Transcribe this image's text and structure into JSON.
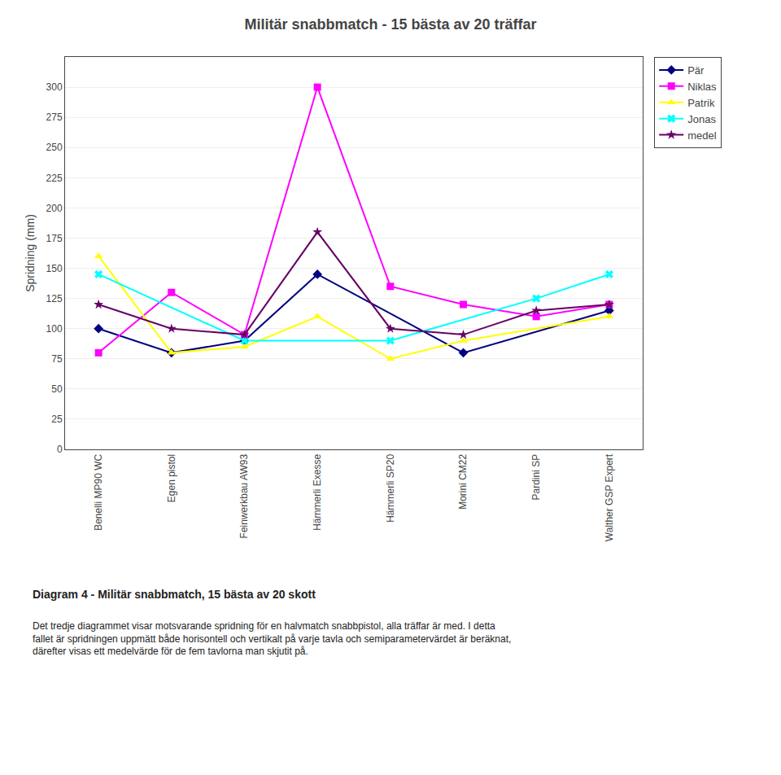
{
  "chart_data": {
    "type": "line",
    "title": "Militär snabbmatch - 15 bästa av 20 träffar",
    "ylabel": "Spridning (mm)",
    "categories": [
      "Benelli MP90 WC",
      "Egen pistol",
      "Feinwerkbau AW93",
      "Hämmerli Exesse",
      "Hämmerli SP20",
      "Morini CM22",
      "Pardini SP",
      "Walther GSP Expert"
    ],
    "series": [
      {
        "name": "Pär",
        "color": "#000080",
        "marker": "diamond",
        "values": [
          100,
          80,
          90,
          145,
          null,
          80,
          null,
          115
        ]
      },
      {
        "name": "Niklas",
        "color": "#FF00FF",
        "marker": "square",
        "values": [
          80,
          130,
          95,
          300,
          135,
          120,
          110,
          120
        ]
      },
      {
        "name": "Patrik",
        "color": "#FFFF00",
        "marker": "triangle-up",
        "values": [
          160,
          80,
          85,
          110,
          75,
          90,
          null,
          110
        ]
      },
      {
        "name": "Jonas",
        "color": "#00FFFF",
        "marker": "x",
        "values": [
          145,
          null,
          90,
          null,
          90,
          null,
          125,
          145
        ]
      },
      {
        "name": "medel",
        "color": "#660066",
        "marker": "star",
        "values": [
          120,
          100,
          95,
          180,
          100,
          95,
          115,
          120
        ]
      }
    ],
    "ylim": [
      0,
      325
    ],
    "yticks": [
      0,
      25,
      50,
      75,
      100,
      125,
      150,
      175,
      200,
      225,
      250,
      275,
      300
    ],
    "grid": true,
    "legend": "upper right",
    "annotations": [
      "Diagram 4 - Militär snabbmatch, 15 bästa av 20 skott",
      "Det tredje diagrammet visar motsvarande spridning för en halvmatch snabbpistol, alla träffar är med. I detta\nfallet är spridningen uppmätt både horisontell och vertikalt på varje tavla och semiparametervärdet är beräknat,\ndärefter visas ett medelvärde för de fem tavlorna man skjutit på."
    ]
  }
}
